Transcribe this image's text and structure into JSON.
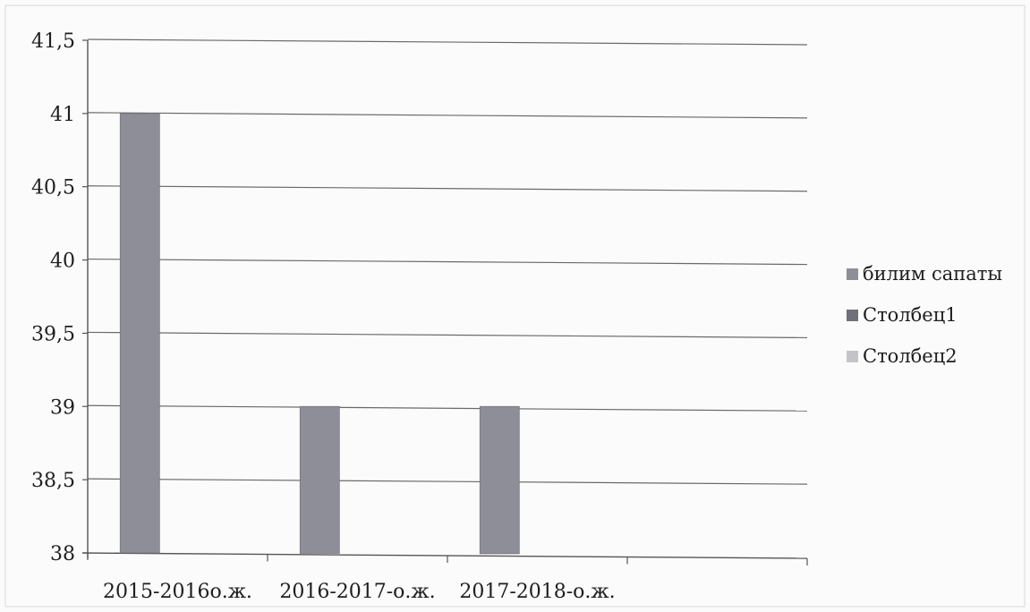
{
  "chart_data": {
    "type": "bar",
    "title": "",
    "xlabel": "",
    "ylabel": "",
    "categories": [
      "2015-2016о.ж.",
      "2016-2017-о.ж.",
      "2017-2018-о.ж.",
      ""
    ],
    "series": [
      {
        "name": "билим сапаты",
        "values": [
          41,
          39,
          39,
          null
        ],
        "color": "#8e8e98"
      },
      {
        "name": "Столбец1",
        "values": [
          null,
          null,
          null,
          null
        ],
        "color": "#707078"
      },
      {
        "name": "Столбец2",
        "values": [
          null,
          null,
          null,
          null
        ],
        "color": "#c4c4c8"
      }
    ],
    "ylim": [
      38,
      41.5
    ],
    "yticks": [
      38,
      38.5,
      39,
      39.5,
      40,
      40.5,
      41,
      41.5
    ],
    "ytick_labels": [
      "38",
      "38,5",
      "39",
      "39,5",
      "40",
      "40,5",
      "41",
      "41,5"
    ],
    "grid": true,
    "legend": "right",
    "colors": {
      "grid": "#6a6a6a",
      "axis": "#555555",
      "frame": "#d8d8d8",
      "text": "#1e1e1e"
    }
  }
}
